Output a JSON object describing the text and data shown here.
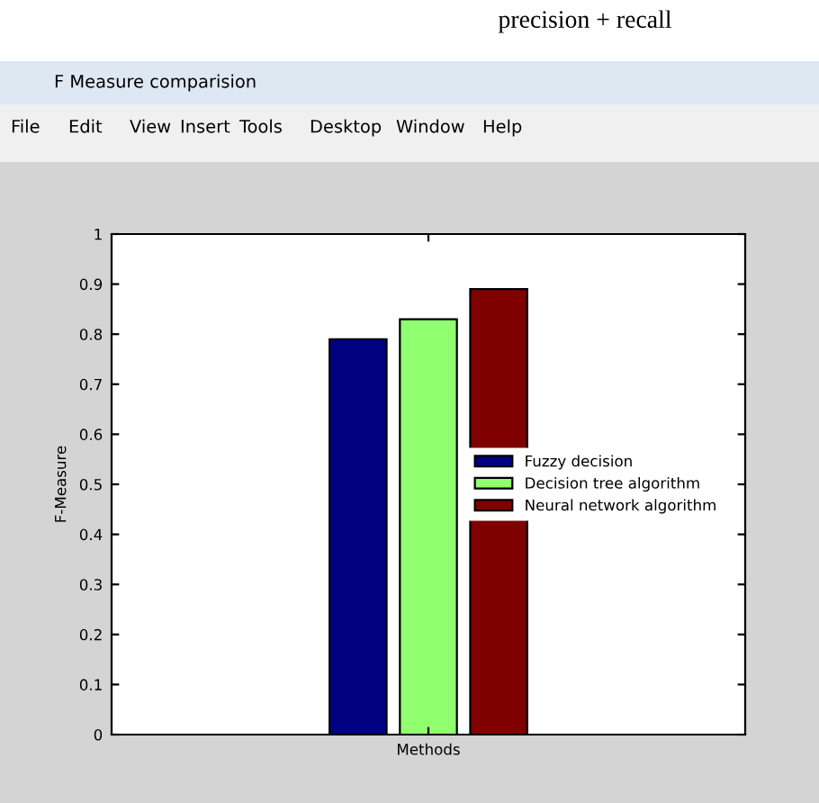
{
  "chart_data": {
    "type": "bar",
    "title": "F Measure comparision",
    "ylabel": "F-Measure",
    "categories": [
      "Methods"
    ],
    "series": [
      {
        "name": "Fuzzy decision",
        "color": "#000080",
        "values": [
          0.79
        ]
      },
      {
        "name": "Decision tree algorithm",
        "color": "#90ff70",
        "values": [
          0.83
        ]
      },
      {
        "name": "Neural network algorithm",
        "color": "#800000",
        "values": [
          0.89
        ]
      }
    ],
    "ylim": [
      0,
      1
    ],
    "yticks": [
      0,
      0.1,
      0.2,
      0.3,
      0.4,
      0.5,
      0.6,
      0.7,
      0.8,
      0.9,
      1
    ],
    "grid": false,
    "legend": "center right",
    "annotations": [
      "precision + recall",
      "File",
      "Edit",
      "View",
      "Insert",
      "Tools",
      "Desktop",
      "Window",
      "Help"
    ]
  }
}
